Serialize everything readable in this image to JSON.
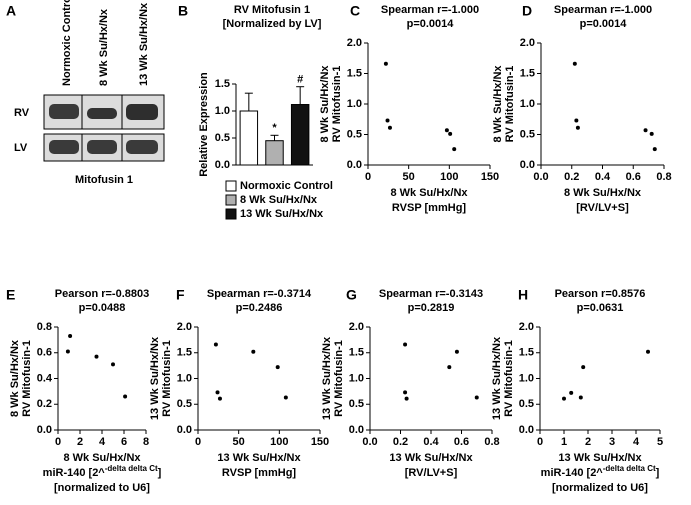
{
  "panel_a": {
    "letter": "A",
    "lanes": [
      "Normoxic Control",
      "8 Wk Su/Hx/Nx",
      "13 Wk Su/Hx/Nx"
    ],
    "rows": [
      "RV",
      "LV"
    ],
    "caption": "Mitofusin 1"
  },
  "chart_data": [
    {
      "type": "bar",
      "panel": "B",
      "title": "RV Mitofusin 1",
      "subtitle": "[Normalized by LV]",
      "y_label": "Relative Expression",
      "ylim": [
        0,
        1.5
      ],
      "yticks": [
        {
          "value": 0,
          "label": "0.0"
        },
        {
          "value": 0.5,
          "label": "0.5"
        },
        {
          "value": 1,
          "label": "1.0"
        },
        {
          "value": 1.5,
          "label": "1.5"
        }
      ],
      "series": [
        {
          "name": "Normoxic Control",
          "color": "#ffffff",
          "values": [
            1.0
          ],
          "errors": [
            0.33
          ]
        },
        {
          "name": "8 Wk Su/Hx/Nx",
          "color": "#b0b0b0",
          "values": [
            0.45
          ],
          "errors": [
            0.1
          ],
          "annotation": "*"
        },
        {
          "name": "13 Wk Su/Hx/Nx",
          "color": "#111111",
          "values": [
            1.12
          ],
          "errors": [
            0.33
          ],
          "annotation": "#"
        }
      ]
    },
    {
      "type": "scatter",
      "panel": "C",
      "title": "Spearman r=-1.000",
      "subtitle": "p=0.0014",
      "x_label": [
        "8 Wk Su/Hx/Nx",
        "RVSP [mmHg]"
      ],
      "y_label": [
        "8 Wk Su/Hx/Nx",
        "RV Mitofusin-1"
      ],
      "x": [
        22,
        24,
        27,
        97,
        101,
        106
      ],
      "values": [
        1.66,
        0.73,
        0.61,
        0.57,
        0.51,
        0.26
      ],
      "xlim": [
        0,
        150
      ],
      "xticks": [
        0,
        50,
        100,
        150
      ],
      "ylim": [
        0,
        2
      ],
      "yticks": [
        {
          "value": 0,
          "label": "0.0"
        },
        {
          "value": 0.5,
          "label": "0.5"
        },
        {
          "value": 1,
          "label": "1.0"
        },
        {
          "value": 1.5,
          "label": "1.5"
        },
        {
          "value": 2,
          "label": "2.0"
        }
      ]
    },
    {
      "type": "scatter",
      "panel": "D",
      "title": "Spearman r=-1.000",
      "subtitle": "p=0.0014",
      "x_label": [
        "8 Wk Su/Hx/Nx",
        "[RV/LV+S]"
      ],
      "y_label": [
        "8 Wk Su/Hx/Nx",
        "RV Mitofusin-1"
      ],
      "x": [
        0.22,
        0.23,
        0.24,
        0.68,
        0.72,
        0.74
      ],
      "values": [
        1.66,
        0.73,
        0.61,
        0.57,
        0.51,
        0.26
      ],
      "xlim": [
        0,
        0.8
      ],
      "xticks": [
        {
          "value": 0,
          "label": "0.0"
        },
        0.2,
        0.4,
        0.6,
        0.8
      ],
      "ylim": [
        0,
        2
      ],
      "yticks": [
        {
          "value": 0,
          "label": "0.0"
        },
        {
          "value": 0.5,
          "label": "0.5"
        },
        {
          "value": 1,
          "label": "1.0"
        },
        {
          "value": 1.5,
          "label": "1.5"
        },
        {
          "value": 2,
          "label": "2.0"
        }
      ]
    },
    {
      "type": "scatter",
      "panel": "E",
      "title": "Pearson r=-0.8803",
      "subtitle": "p=0.0488",
      "x_label": [
        "8 Wk Su/Hx/Nx",
        [
          "miR-140 [2^",
          "-delta delta Ct",
          "]"
        ],
        "[normalized to U6]"
      ],
      "y_label": [
        "8 Wk Su/Hx/Nx",
        "RV Mitofusin-1"
      ],
      "x": [
        1.1,
        0.9,
        3.5,
        5.0,
        6.1
      ],
      "values": [
        0.73,
        0.61,
        0.57,
        0.51,
        0.26
      ],
      "xlim": [
        0,
        8
      ],
      "xticks": [
        0,
        2,
        4,
        6,
        8
      ],
      "ylim": [
        0,
        0.8
      ],
      "yticks": [
        {
          "value": 0,
          "label": "0.0"
        },
        0.2,
        0.4,
        0.6,
        0.8
      ]
    },
    {
      "type": "scatter",
      "panel": "F",
      "title": "Spearman r=-0.3714",
      "subtitle": "p=0.2486",
      "x_label": [
        "13 Wk Su/Hx/Nx",
        "RVSP [mmHg]"
      ],
      "y_label": [
        "13 Wk Su/Hx/Nx",
        "RV Mitofusin-1"
      ],
      "x": [
        22,
        24,
        27,
        68,
        98,
        108
      ],
      "values": [
        1.66,
        0.73,
        0.61,
        1.52,
        1.22,
        0.63
      ],
      "xlim": [
        0,
        150
      ],
      "xticks": [
        0,
        50,
        100,
        150
      ],
      "ylim": [
        0,
        2
      ],
      "yticks": [
        {
          "value": 0,
          "label": "0.0"
        },
        {
          "value": 0.5,
          "label": "0.5"
        },
        {
          "value": 1,
          "label": "1.0"
        },
        {
          "value": 1.5,
          "label": "1.5"
        },
        {
          "value": 2,
          "label": "2.0"
        }
      ]
    },
    {
      "type": "scatter",
      "panel": "G",
      "title": "Spearman r=-0.3143",
      "subtitle": "p=0.2819",
      "x_label": [
        "13 Wk Su/Hx/Nx",
        "[RV/LV+S]"
      ],
      "y_label": [
        "13 Wk Su/Hx/Nx",
        "RV Mitofusin-1"
      ],
      "x": [
        0.23,
        0.23,
        0.24,
        0.57,
        0.52,
        0.7
      ],
      "values": [
        1.66,
        0.73,
        0.61,
        1.52,
        1.22,
        0.63
      ],
      "xlim": [
        0,
        0.8
      ],
      "xticks": [
        {
          "value": 0,
          "label": "0.0"
        },
        0.2,
        0.4,
        0.6,
        0.8
      ],
      "ylim": [
        0,
        2
      ],
      "yticks": [
        {
          "value": 0,
          "label": "0.0"
        },
        {
          "value": 0.5,
          "label": "0.5"
        },
        {
          "value": 1,
          "label": "1.0"
        },
        {
          "value": 1.5,
          "label": "1.5"
        },
        {
          "value": 2,
          "label": "2.0"
        }
      ]
    },
    {
      "type": "scatter",
      "panel": "H",
      "title": "Pearson r=0.8576",
      "subtitle": "p=0.0631",
      "x_label": [
        "13 Wk Su/Hx/Nx",
        [
          "miR-140 [2^",
          "-delta delta Ct",
          "]"
        ],
        "[normalized to U6]"
      ],
      "y_label": [
        "13 Wk Su/Hx/Nx",
        "RV Mitofusin-1"
      ],
      "x": [
        1.0,
        1.3,
        1.7,
        1.8,
        4.5
      ],
      "values": [
        0.61,
        0.72,
        0.63,
        1.22,
        1.52
      ],
      "xlim": [
        0,
        5
      ],
      "xticks": [
        0,
        1,
        2,
        3,
        4,
        5
      ],
      "ylim": [
        0,
        2
      ],
      "yticks": [
        {
          "value": 0,
          "label": "0.0"
        },
        {
          "value": 0.5,
          "label": "0.5"
        },
        {
          "value": 1,
          "label": "1.0"
        },
        {
          "value": 1.5,
          "label": "1.5"
        },
        {
          "value": 2,
          "label": "2.0"
        }
      ]
    }
  ]
}
